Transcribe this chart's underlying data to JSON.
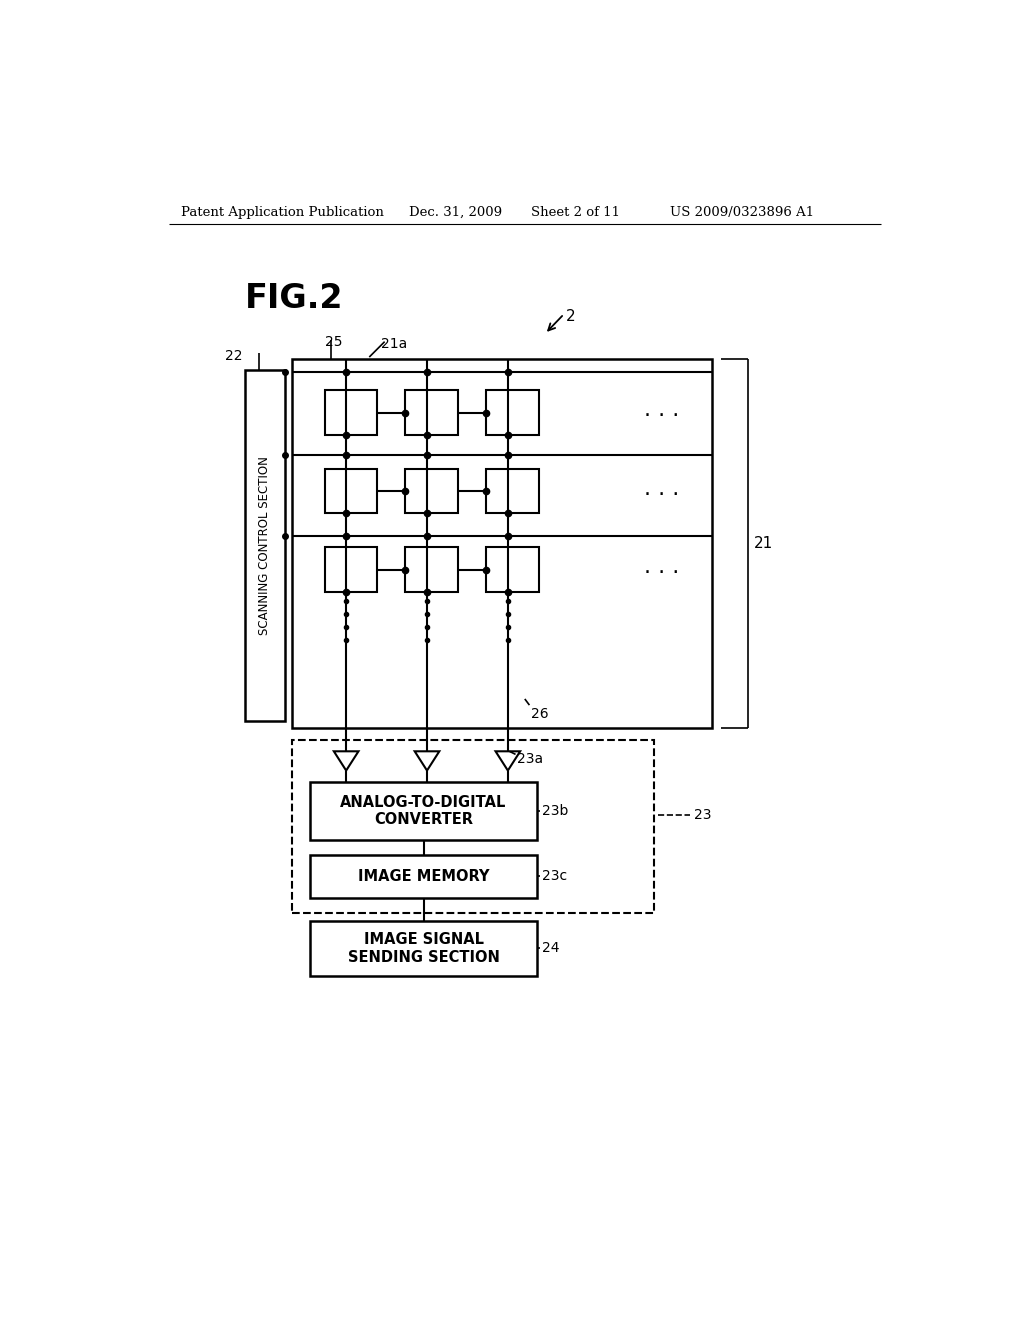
{
  "background_color": "#ffffff",
  "header_text": "Patent Application Publication",
  "header_date": "Dec. 31, 2009",
  "header_sheet": "Sheet 2 of 11",
  "header_patent": "US 2009/0323896 A1",
  "figure_label": "FIG.2",
  "label_2": "2",
  "label_21": "21",
  "label_21a": "21a",
  "label_22": "22",
  "label_23": "23",
  "label_23a": "23a",
  "label_23b": "23b",
  "label_23c": "23c",
  "label_24": "24",
  "label_25": "25",
  "label_26": "26",
  "adc_text": "ANALOG-TO-DIGITAL\nCONVERTER",
  "mem_text": "IMAGE MEMORY",
  "sig_text": "IMAGE SIGNAL\nSENDING SECTION",
  "scan_text": "SCANNING CONTROL SECTION"
}
